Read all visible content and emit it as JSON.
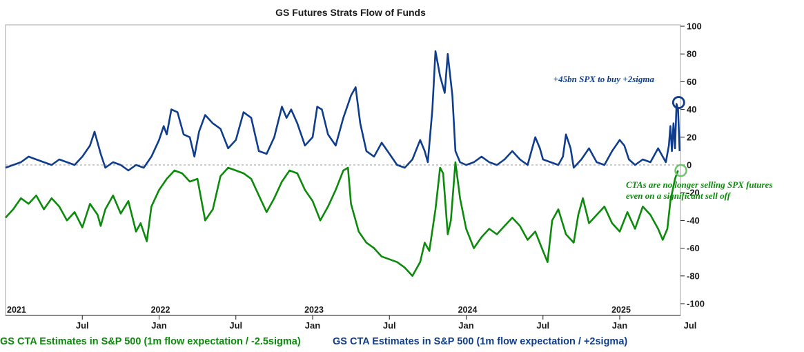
{
  "chart_data": {
    "type": "line",
    "title": "GS Futures Strats Flow of Funds",
    "xlabel": "",
    "ylabel": "",
    "ylim": [
      -100,
      100
    ],
    "yticks": [
      100,
      80,
      60,
      40,
      20,
      0,
      -20,
      -40,
      -60,
      -80,
      -100
    ],
    "x_unit": "years since 2021-01-01",
    "xlim": [
      0,
      4.5
    ],
    "month_ticks": [
      {
        "x": 0.5,
        "label": "Jul"
      },
      {
        "x": 1.0,
        "label": "Jan"
      },
      {
        "x": 1.5,
        "label": "Jul"
      },
      {
        "x": 2.0,
        "label": "Jan"
      },
      {
        "x": 2.5,
        "label": "Jul"
      },
      {
        "x": 3.0,
        "label": "Jan"
      },
      {
        "x": 3.5,
        "label": "Jul"
      },
      {
        "x": 4.0,
        "label": "Jan"
      },
      {
        "x": 4.5,
        "label": "Jul"
      }
    ],
    "year_labels": [
      {
        "x": 0.0,
        "label": "2021"
      },
      {
        "x": 1.0,
        "label": "2022"
      },
      {
        "x": 2.0,
        "label": "2023"
      },
      {
        "x": 3.0,
        "label": "2024"
      },
      {
        "x": 4.0,
        "label": "2025"
      }
    ],
    "zero_line": "dashed",
    "legend_position": "bottom",
    "series": [
      {
        "name": "GS CTA Estimates in S&P 500 (1m flow expectation / -2.5sigma)",
        "color": "#0b8a0b",
        "points": [
          [
            0.0,
            -38
          ],
          [
            0.05,
            -32
          ],
          [
            0.1,
            -24
          ],
          [
            0.15,
            -28
          ],
          [
            0.2,
            -22
          ],
          [
            0.25,
            -32
          ],
          [
            0.3,
            -24
          ],
          [
            0.35,
            -30
          ],
          [
            0.4,
            -40
          ],
          [
            0.45,
            -34
          ],
          [
            0.5,
            -45
          ],
          [
            0.55,
            -28
          ],
          [
            0.6,
            -36
          ],
          [
            0.62,
            -44
          ],
          [
            0.65,
            -32
          ],
          [
            0.7,
            -22
          ],
          [
            0.75,
            -35
          ],
          [
            0.8,
            -26
          ],
          [
            0.85,
            -48
          ],
          [
            0.88,
            -42
          ],
          [
            0.92,
            -55
          ],
          [
            0.95,
            -30
          ],
          [
            1.0,
            -18
          ],
          [
            1.05,
            -10
          ],
          [
            1.1,
            -4
          ],
          [
            1.15,
            -6
          ],
          [
            1.2,
            -12
          ],
          [
            1.25,
            -10
          ],
          [
            1.3,
            -40
          ],
          [
            1.35,
            -32
          ],
          [
            1.4,
            -8
          ],
          [
            1.45,
            -2
          ],
          [
            1.5,
            -4
          ],
          [
            1.55,
            -6
          ],
          [
            1.6,
            -10
          ],
          [
            1.65,
            -22
          ],
          [
            1.7,
            -34
          ],
          [
            1.75,
            -24
          ],
          [
            1.8,
            -12
          ],
          [
            1.85,
            -4
          ],
          [
            1.9,
            -6
          ],
          [
            1.95,
            -18
          ],
          [
            2.0,
            -26
          ],
          [
            2.05,
            -40
          ],
          [
            2.1,
            -30
          ],
          [
            2.15,
            -18
          ],
          [
            2.2,
            -4
          ],
          [
            2.23,
            -2
          ],
          [
            2.25,
            -28
          ],
          [
            2.3,
            -48
          ],
          [
            2.35,
            -56
          ],
          [
            2.4,
            -60
          ],
          [
            2.45,
            -66
          ],
          [
            2.5,
            -68
          ],
          [
            2.55,
            -70
          ],
          [
            2.6,
            -74
          ],
          [
            2.65,
            -80
          ],
          [
            2.7,
            -70
          ],
          [
            2.73,
            -56
          ],
          [
            2.76,
            -62
          ],
          [
            2.8,
            -32
          ],
          [
            2.83,
            -2
          ],
          [
            2.85,
            -6
          ],
          [
            2.88,
            -50
          ],
          [
            2.9,
            -40
          ],
          [
            2.93,
            2
          ],
          [
            2.96,
            -24
          ],
          [
            3.0,
            -46
          ],
          [
            3.05,
            -60
          ],
          [
            3.1,
            -52
          ],
          [
            3.15,
            -46
          ],
          [
            3.2,
            -50
          ],
          [
            3.25,
            -44
          ],
          [
            3.3,
            -38
          ],
          [
            3.35,
            -44
          ],
          [
            3.4,
            -54
          ],
          [
            3.45,
            -48
          ],
          [
            3.5,
            -62
          ],
          [
            3.53,
            -70
          ],
          [
            3.56,
            -40
          ],
          [
            3.6,
            -32
          ],
          [
            3.65,
            -50
          ],
          [
            3.7,
            -56
          ],
          [
            3.73,
            -36
          ],
          [
            3.76,
            -24
          ],
          [
            3.8,
            -42
          ],
          [
            3.85,
            -36
          ],
          [
            3.9,
            -30
          ],
          [
            3.95,
            -42
          ],
          [
            4.0,
            -48
          ],
          [
            4.05,
            -34
          ],
          [
            4.1,
            -46
          ],
          [
            4.15,
            -30
          ],
          [
            4.2,
            -36
          ],
          [
            4.25,
            -46
          ],
          [
            4.28,
            -54
          ],
          [
            4.31,
            -46
          ],
          [
            4.33,
            -26
          ],
          [
            4.36,
            -10
          ],
          [
            4.38,
            -4
          ]
        ]
      },
      {
        "name": "GS CTA Estimates in S&P 500 (1m flow expectation / +2sigma)",
        "color": "#0f3d8c",
        "points": [
          [
            0.0,
            -2
          ],
          [
            0.05,
            0
          ],
          [
            0.1,
            2
          ],
          [
            0.15,
            6
          ],
          [
            0.2,
            4
          ],
          [
            0.25,
            2
          ],
          [
            0.3,
            0
          ],
          [
            0.35,
            4
          ],
          [
            0.4,
            2
          ],
          [
            0.45,
            0
          ],
          [
            0.5,
            6
          ],
          [
            0.55,
            14
          ],
          [
            0.58,
            24
          ],
          [
            0.62,
            8
          ],
          [
            0.65,
            -2
          ],
          [
            0.7,
            2
          ],
          [
            0.75,
            0
          ],
          [
            0.8,
            -4
          ],
          [
            0.85,
            0
          ],
          [
            0.9,
            -2
          ],
          [
            0.95,
            6
          ],
          [
            1.0,
            18
          ],
          [
            1.03,
            28
          ],
          [
            1.05,
            22
          ],
          [
            1.08,
            40
          ],
          [
            1.12,
            38
          ],
          [
            1.16,
            22
          ],
          [
            1.2,
            20
          ],
          [
            1.23,
            6
          ],
          [
            1.26,
            24
          ],
          [
            1.3,
            36
          ],
          [
            1.35,
            30
          ],
          [
            1.4,
            26
          ],
          [
            1.45,
            12
          ],
          [
            1.5,
            18
          ],
          [
            1.55,
            38
          ],
          [
            1.6,
            34
          ],
          [
            1.65,
            10
          ],
          [
            1.7,
            8
          ],
          [
            1.75,
            20
          ],
          [
            1.8,
            42
          ],
          [
            1.83,
            34
          ],
          [
            1.86,
            40
          ],
          [
            1.9,
            30
          ],
          [
            1.95,
            14
          ],
          [
            2.0,
            20
          ],
          [
            2.03,
            42
          ],
          [
            2.06,
            40
          ],
          [
            2.1,
            22
          ],
          [
            2.15,
            14
          ],
          [
            2.2,
            34
          ],
          [
            2.25,
            50
          ],
          [
            2.28,
            56
          ],
          [
            2.31,
            30
          ],
          [
            2.35,
            10
          ],
          [
            2.4,
            6
          ],
          [
            2.45,
            16
          ],
          [
            2.5,
            8
          ],
          [
            2.55,
            0
          ],
          [
            2.6,
            -2
          ],
          [
            2.65,
            4
          ],
          [
            2.7,
            18
          ],
          [
            2.73,
            10
          ],
          [
            2.75,
            2
          ],
          [
            2.78,
            40
          ],
          [
            2.8,
            82
          ],
          [
            2.83,
            64
          ],
          [
            2.86,
            52
          ],
          [
            2.88,
            80
          ],
          [
            2.91,
            50
          ],
          [
            2.93,
            10
          ],
          [
            2.96,
            2
          ],
          [
            3.0,
            0
          ],
          [
            3.05,
            2
          ],
          [
            3.1,
            6
          ],
          [
            3.15,
            2
          ],
          [
            3.2,
            0
          ],
          [
            3.25,
            4
          ],
          [
            3.3,
            10
          ],
          [
            3.35,
            4
          ],
          [
            3.4,
            0
          ],
          [
            3.45,
            20
          ],
          [
            3.48,
            12
          ],
          [
            3.5,
            4
          ],
          [
            3.55,
            2
          ],
          [
            3.6,
            0
          ],
          [
            3.63,
            6
          ],
          [
            3.65,
            22
          ],
          [
            3.68,
            12
          ],
          [
            3.7,
            -2
          ],
          [
            3.75,
            4
          ],
          [
            3.8,
            12
          ],
          [
            3.85,
            2
          ],
          [
            3.9,
            0
          ],
          [
            3.95,
            10
          ],
          [
            4.0,
            18
          ],
          [
            4.03,
            14
          ],
          [
            4.06,
            4
          ],
          [
            4.1,
            0
          ],
          [
            4.15,
            4
          ],
          [
            4.2,
            2
          ],
          [
            4.25,
            12
          ],
          [
            4.28,
            6
          ],
          [
            4.3,
            2
          ],
          [
            4.32,
            14
          ],
          [
            4.33,
            28
          ],
          [
            4.34,
            10
          ],
          [
            4.35,
            30
          ],
          [
            4.36,
            12
          ],
          [
            4.37,
            44
          ],
          [
            4.38,
            40
          ],
          [
            4.39,
            10
          ]
        ]
      }
    ],
    "annotations": [
      {
        "text": "+45bn SPX to buy +2sigma",
        "x": 4.37,
        "y": 45,
        "color": "#0f3d8c"
      },
      {
        "text": "CTAs are no longer selling SPX futures",
        "x": 4.38,
        "y": -4,
        "color": "#0b8a0b"
      },
      {
        "text": "even on a significant sell off",
        "x": 4.38,
        "y": -4,
        "color": "#0b8a0b"
      }
    ]
  }
}
